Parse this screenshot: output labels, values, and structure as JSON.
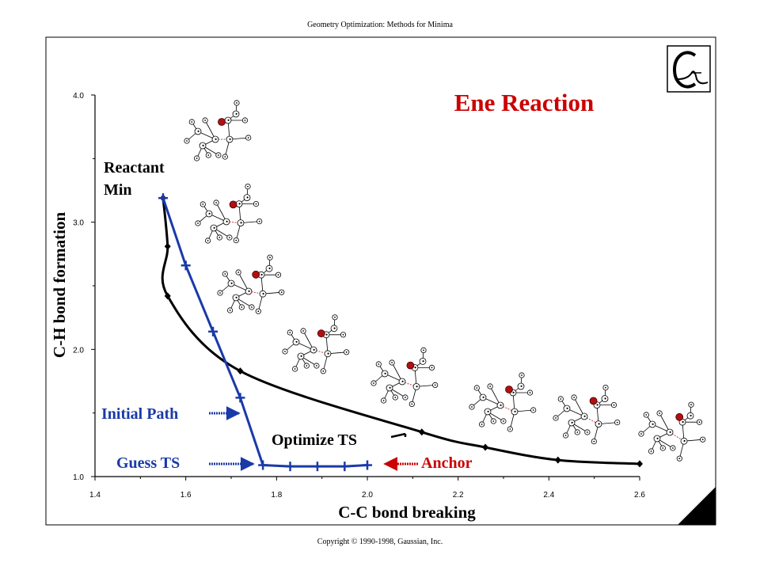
{
  "slide": {
    "header": "Geometry Optimization: Methods for Minima",
    "footer": "Copyright © 1990-1998, Gaussian, Inc."
  },
  "colors": {
    "title": "#cc0000",
    "path_blue": "#1a3aa8",
    "reaction_path": "#000000",
    "oxygen": "#b01010"
  },
  "chart_data": {
    "type": "line",
    "title": "Ene Reaction",
    "xlabel": "C-C bond breaking",
    "ylabel": "C-H bond formation",
    "xlim": [
      1.4,
      2.6
    ],
    "ylim": [
      1.0,
      4.0
    ],
    "xticks": [
      1.4,
      1.6,
      1.8,
      2.0,
      2.2,
      2.4,
      2.6
    ],
    "xtick_labels": [
      "1.4",
      "1.6",
      "1.8",
      "2.0",
      "2.2",
      "2.4",
      "2.6"
    ],
    "yticks": [
      1.0,
      2.0,
      3.0,
      4.0
    ],
    "ytick_labels": [
      "1.0",
      "2.0",
      "3.0",
      "4.0"
    ],
    "grid": false,
    "series": [
      {
        "curve": "reaction-path",
        "x": [
          1.55,
          1.56,
          1.56,
          1.72,
          2.12,
          2.26,
          2.42,
          2.6
        ],
        "y": [
          3.19,
          2.81,
          2.42,
          1.83,
          1.35,
          1.23,
          1.13,
          1.1
        ]
      },
      {
        "curve": "initial-path",
        "x": [
          1.55,
          1.6,
          1.66,
          1.72,
          1.77,
          1.83,
          1.89,
          1.95,
          2.0
        ],
        "y": [
          3.19,
          2.66,
          2.14,
          1.62,
          1.09,
          1.08,
          1.08,
          1.08,
          1.09
        ]
      }
    ],
    "annotations": [
      {
        "text": "Reactant",
        "arrow": false
      },
      {
        "text": "Min",
        "arrow": false
      },
      {
        "text": "Initial Path",
        "arrow": true
      },
      {
        "text": "Guess TS",
        "arrow": true
      },
      {
        "text": "Optimize TS",
        "arrow": true
      },
      {
        "text": "Anchor",
        "arrow": true
      }
    ]
  }
}
